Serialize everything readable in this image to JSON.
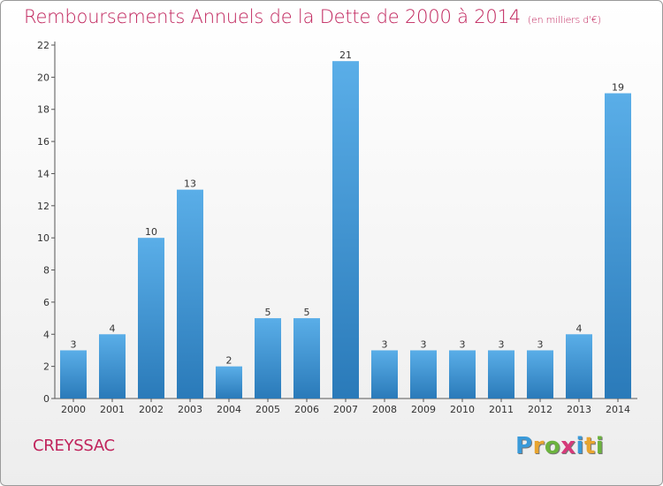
{
  "header": {
    "title": "Remboursements Annuels de la Dette de 2000 à 2014",
    "unit": "(en milliers d'€)"
  },
  "footer": {
    "commune": "CREYSSAC",
    "logo_letters": [
      "P",
      "r",
      "o",
      "x",
      "i",
      "t",
      "i"
    ],
    "logo_colors": [
      "#3a9ad9",
      "#e8a530",
      "#6cb33e",
      "#d63a7a",
      "#3a9ad9",
      "#e8a530",
      "#6cb33e"
    ]
  },
  "chart_data": {
    "type": "bar",
    "title": "Remboursements Annuels de la Dette de 2000 à 2014",
    "categories": [
      "2000",
      "2001",
      "2002",
      "2003",
      "2004",
      "2005",
      "2006",
      "2007",
      "2008",
      "2009",
      "2010",
      "2011",
      "2012",
      "2013",
      "2014"
    ],
    "values": [
      3,
      4,
      10,
      13,
      2,
      5,
      5,
      21,
      3,
      3,
      3,
      3,
      3,
      4,
      19
    ],
    "data_labels": [
      "3",
      "4",
      "10",
      "13",
      "2",
      "5",
      "5",
      "21",
      "3",
      "3",
      "3",
      "3",
      "3",
      "4",
      "19"
    ],
    "ylim": [
      0,
      22
    ],
    "yticks": [
      "0",
      "2",
      "4",
      "6",
      "8",
      "10",
      "12",
      "14",
      "16",
      "18",
      "20",
      "22"
    ],
    "grid": false,
    "bar_color_top": "#5aaee8",
    "bar_color_bottom": "#2a7ab9",
    "axis_color": "#555555"
  }
}
